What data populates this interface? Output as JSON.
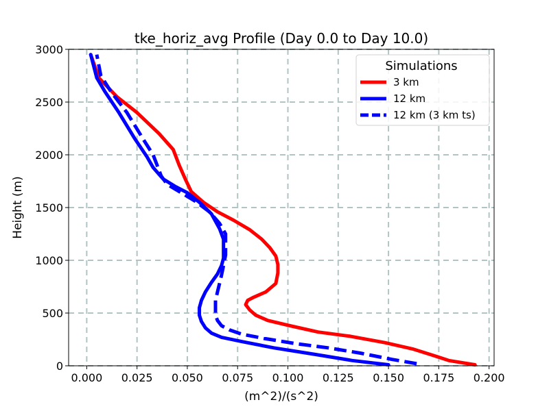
{
  "chart_data": {
    "type": "line",
    "title": "tke_horiz_avg Profile (Day 0.0 to Day 10.0)",
    "xlabel": "(m^2)/(s^2)",
    "ylabel": "Height (m)",
    "xlim": [
      -0.009,
      0.2025
    ],
    "ylim": [
      0,
      3000
    ],
    "xticks": [
      0.0,
      0.025,
      0.05,
      0.075,
      0.1,
      0.125,
      0.15,
      0.175,
      0.2
    ],
    "xtick_labels": [
      "0.000",
      "0.025",
      "0.050",
      "0.075",
      "0.100",
      "0.125",
      "0.150",
      "0.175",
      "0.200"
    ],
    "yticks": [
      0,
      500,
      1000,
      1500,
      2000,
      2500,
      3000
    ],
    "ytick_labels": [
      "0",
      "500",
      "1000",
      "1500",
      "2000",
      "2500",
      "3000"
    ],
    "grid": true,
    "legend": {
      "title": "Simulations",
      "placement": "top-right"
    },
    "series": [
      {
        "name": "3 km",
        "color": "#ff0000",
        "dash": "solid",
        "points": [
          [
            0.193,
            10
          ],
          [
            0.18,
            50
          ],
          [
            0.172,
            100
          ],
          [
            0.162,
            160
          ],
          [
            0.148,
            220
          ],
          [
            0.131,
            280
          ],
          [
            0.115,
            320
          ],
          [
            0.101,
            380
          ],
          [
            0.09,
            430
          ],
          [
            0.084,
            480
          ],
          [
            0.081,
            530
          ],
          [
            0.079,
            580
          ],
          [
            0.08,
            620
          ],
          [
            0.083,
            650
          ],
          [
            0.089,
            700
          ],
          [
            0.094,
            780
          ],
          [
            0.095,
            880
          ],
          [
            0.095,
            960
          ],
          [
            0.094,
            1040
          ],
          [
            0.091,
            1120
          ],
          [
            0.087,
            1200
          ],
          [
            0.081,
            1290
          ],
          [
            0.073,
            1380
          ],
          [
            0.065,
            1460
          ],
          [
            0.058,
            1550
          ],
          [
            0.052,
            1650
          ],
          [
            0.049,
            1770
          ],
          [
            0.046,
            1900
          ],
          [
            0.043,
            2050
          ],
          [
            0.036,
            2200
          ],
          [
            0.025,
            2400
          ],
          [
            0.015,
            2550
          ],
          [
            0.006,
            2730
          ],
          [
            0.002,
            2950
          ]
        ]
      },
      {
        "name": "12 km",
        "color": "#0000ff",
        "dash": "solid",
        "points": [
          [
            0.15,
            10
          ],
          [
            0.132,
            50
          ],
          [
            0.113,
            110
          ],
          [
            0.093,
            170
          ],
          [
            0.077,
            230
          ],
          [
            0.067,
            270
          ],
          [
            0.062,
            310
          ],
          [
            0.059,
            360
          ],
          [
            0.057,
            420
          ],
          [
            0.056,
            480
          ],
          [
            0.056,
            550
          ],
          [
            0.057,
            620
          ],
          [
            0.059,
            700
          ],
          [
            0.062,
            790
          ],
          [
            0.065,
            870
          ],
          [
            0.067,
            950
          ],
          [
            0.068,
            1020
          ],
          [
            0.068,
            1110
          ],
          [
            0.068,
            1200
          ],
          [
            0.066,
            1300
          ],
          [
            0.062,
            1440
          ],
          [
            0.056,
            1550
          ],
          [
            0.05,
            1640
          ],
          [
            0.044,
            1700
          ],
          [
            0.038,
            1770
          ],
          [
            0.033,
            1880
          ],
          [
            0.03,
            1980
          ],
          [
            0.024,
            2150
          ],
          [
            0.016,
            2400
          ],
          [
            0.009,
            2600
          ],
          [
            0.005,
            2730
          ],
          [
            0.002,
            2950
          ]
        ]
      },
      {
        "name": "12 km (3 km ts)",
        "color": "#0000ff",
        "dash": "dashed",
        "points": [
          [
            0.164,
            20
          ],
          [
            0.152,
            60
          ],
          [
            0.136,
            120
          ],
          [
            0.12,
            170
          ],
          [
            0.104,
            210
          ],
          [
            0.088,
            260
          ],
          [
            0.077,
            300
          ],
          [
            0.071,
            340
          ],
          [
            0.067,
            380
          ],
          [
            0.065,
            430
          ],
          [
            0.064,
            480
          ],
          [
            0.064,
            550
          ],
          [
            0.064,
            620
          ],
          [
            0.065,
            700
          ],
          [
            0.066,
            780
          ],
          [
            0.067,
            860
          ],
          [
            0.068,
            950
          ],
          [
            0.069,
            1050
          ],
          [
            0.069,
            1150
          ],
          [
            0.069,
            1250
          ],
          [
            0.066,
            1350
          ],
          [
            0.061,
            1460
          ],
          [
            0.054,
            1560
          ],
          [
            0.047,
            1640
          ],
          [
            0.04,
            1720
          ],
          [
            0.037,
            1800
          ],
          [
            0.035,
            1900
          ],
          [
            0.033,
            2000
          ],
          [
            0.028,
            2150
          ],
          [
            0.02,
            2400
          ],
          [
            0.012,
            2600
          ],
          [
            0.007,
            2750
          ],
          [
            0.005,
            2950
          ]
        ]
      }
    ]
  }
}
